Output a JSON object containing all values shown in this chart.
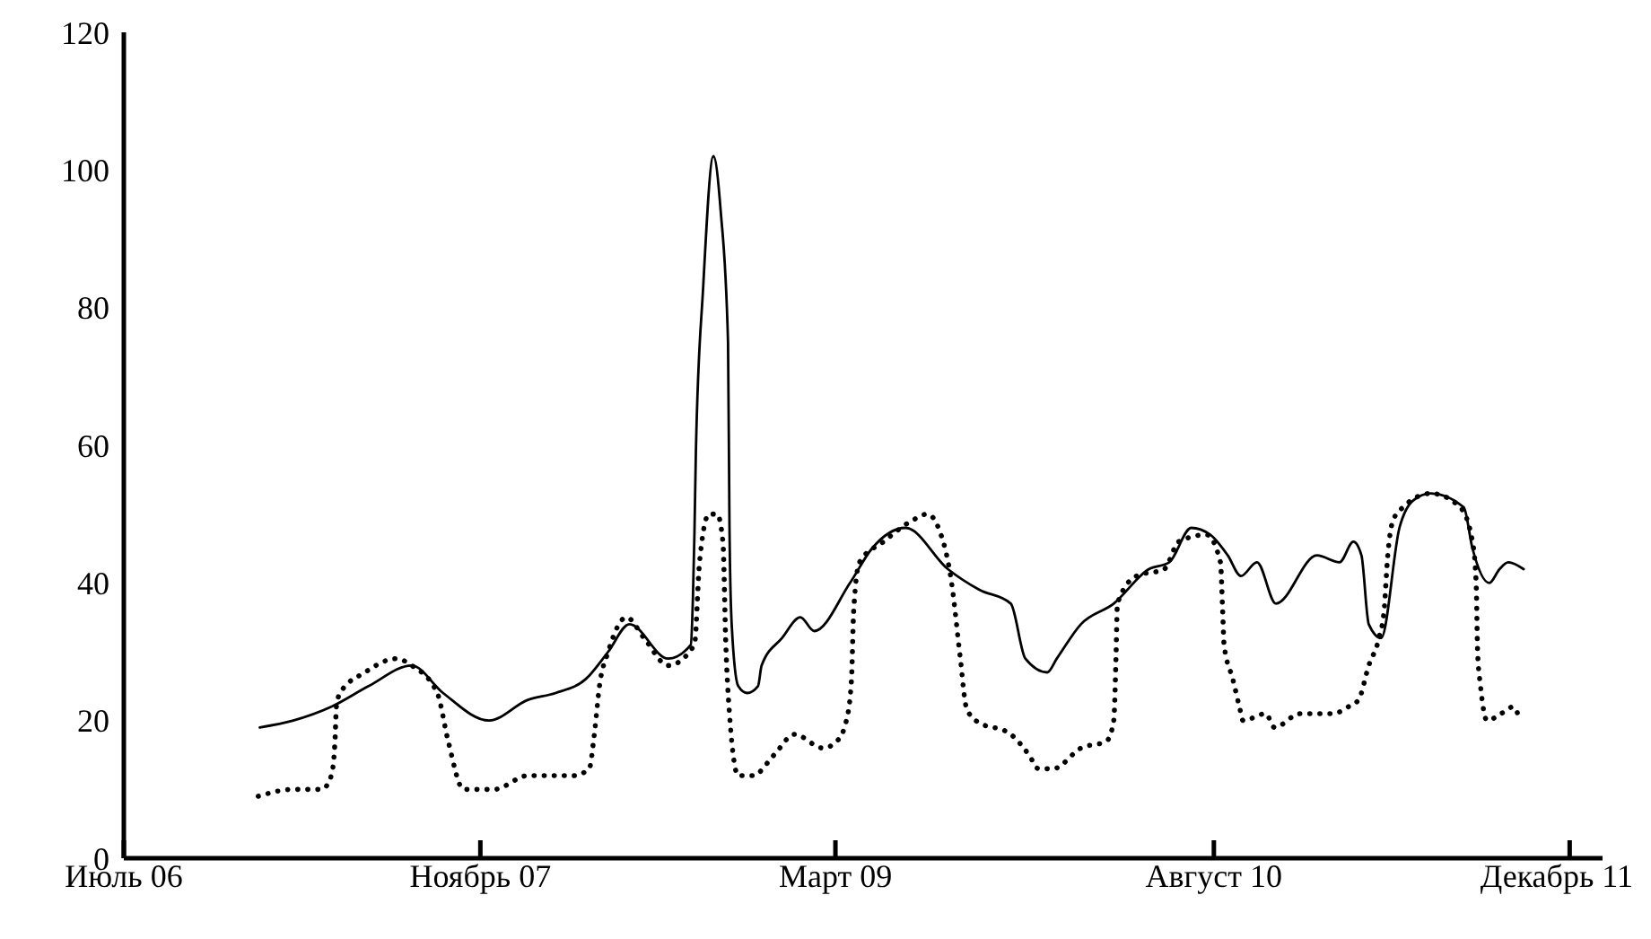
{
  "chart_data": {
    "type": "line",
    "xlim": [
      "2006-07",
      "2012-01-15"
    ],
    "ylim": [
      0,
      120
    ],
    "xticks": [
      {
        "value": "2006-07",
        "label": "Июль 06"
      },
      {
        "value": "2007-11",
        "label": "Ноябрь 07"
      },
      {
        "value": "2009-03",
        "label": "Март 09"
      },
      {
        "value": "2010-08",
        "label": "Август 10"
      },
      {
        "value": "2011-12",
        "label": "Декабрь 11"
      }
    ],
    "yticks": [
      0,
      20,
      40,
      60,
      80,
      100,
      120
    ],
    "grid": false,
    "legend": false,
    "marker": "none",
    "series": [
      {
        "color": "#000000",
        "line_style": "solid",
        "x": [
          "2007-01-03",
          "2007-02-18",
          "2007-04-11",
          "2007-06-01",
          "2007-07-30",
          "2007-09-11",
          "2007-11-13",
          "2008-01-05",
          "2008-02-12",
          "2008-03-24",
          "2008-04-24",
          "2008-05-23",
          "2008-07-15",
          "2008-08-15",
          "2008-08-18",
          "2008-08-20",
          "2008-08-22",
          "2008-09-01",
          "2008-09-15",
          "2008-09-25",
          "2008-10-05",
          "2008-10-07",
          "2008-10-10",
          "2008-10-19",
          "2008-10-31",
          "2008-11-15",
          "2008-11-20",
          "2008-12-18",
          "2009-01-12",
          "2009-01-31",
          "2009-03-21",
          "2009-04-20",
          "2009-06-05",
          "2009-08-02",
          "2009-09-14",
          "2009-10-27",
          "2009-11-16",
          "2009-12-16",
          "2009-12-29",
          "2010-01-31",
          "2010-03-17",
          "2010-05-04",
          "2010-06-01",
          "2010-07-01",
          "2010-07-27",
          "2010-08-20",
          "2010-09-07",
          "2010-09-29",
          "2010-10-25",
          "2010-12-20",
          "2011-01-20",
          "2011-02-08",
          "2011-02-19",
          "2011-03-01",
          "2011-03-18",
          "2011-04-12",
          "2011-05-01",
          "2011-05-25",
          "2011-07-09",
          "2011-07-21",
          "2011-08-13",
          "2011-08-27",
          "2011-09-08",
          "2011-09-29"
        ],
        "values": [
          19,
          20,
          22,
          25,
          28,
          24,
          20,
          23,
          24,
          26,
          30,
          34,
          29,
          31,
          38,
          47,
          59,
          83,
          102,
          94,
          75,
          48,
          34,
          25,
          24,
          25,
          28,
          32,
          35,
          33,
          40,
          45,
          48,
          42,
          39,
          37,
          29,
          27,
          29,
          34,
          37,
          42,
          43,
          48,
          47,
          44,
          41,
          43,
          37,
          44,
          43,
          46,
          44,
          34,
          32,
          48,
          52,
          53,
          51,
          45,
          40,
          42,
          43,
          42
        ]
      },
      {
        "color": "#000000",
        "line_style": "dotted",
        "x": [
          "2007-01-01",
          "2007-02-18",
          "2007-03-29",
          "2007-04-11",
          "2007-04-16",
          "2007-04-18",
          "2007-04-23",
          "2007-05-27",
          "2007-07-09",
          "2007-07-30",
          "2007-09-03",
          "2007-09-18",
          "2007-10-09",
          "2007-11-20",
          "2008-01-05",
          "2008-03-07",
          "2008-03-29",
          "2008-04-05",
          "2008-04-12",
          "2008-04-24",
          "2008-05-19",
          "2008-06-12",
          "2008-07-15",
          "2008-08-20",
          "2008-08-27",
          "2008-09-09",
          "2008-09-20",
          "2008-09-28",
          "2008-10-02",
          "2008-10-07",
          "2008-10-19",
          "2008-11-08",
          "2008-12-07",
          "2009-01-04",
          "2009-02-12",
          "2009-03-03",
          "2009-03-16",
          "2009-03-23",
          "2009-03-26",
          "2009-04-03",
          "2009-05-06",
          "2009-06-13",
          "2009-07-05",
          "2009-07-20",
          "2009-08-07",
          "2009-08-19",
          "2009-08-27",
          "2009-09-09",
          "2009-10-27",
          "2009-11-21",
          "2009-12-04",
          "2009-12-24",
          "2010-01-31",
          "2010-03-07",
          "2010-03-17",
          "2010-03-20",
          "2010-03-22",
          "2010-04-17",
          "2010-05-25",
          "2010-06-14",
          "2010-07-22",
          "2010-08-10",
          "2010-08-13",
          "2010-08-15",
          "2010-08-27",
          "2010-09-05",
          "2010-09-10",
          "2010-10-11",
          "2010-10-23",
          "2010-11-27",
          "2011-01-11",
          "2011-02-01",
          "2011-02-15",
          "2011-03-01",
          "2011-03-15",
          "2011-03-22",
          "2011-03-27",
          "2011-04-03",
          "2011-04-17",
          "2011-05-25",
          "2011-07-04",
          "2011-07-21",
          "2011-07-26",
          "2011-07-28",
          "2011-08-01",
          "2011-08-10",
          "2011-08-29",
          "2011-09-15",
          "2011-09-24"
        ],
        "values": [
          9,
          10,
          10,
          12,
          17,
          22,
          24,
          27,
          29,
          28,
          24,
          17,
          10,
          10,
          12,
          12,
          13,
          18,
          25,
          30,
          35,
          32,
          28,
          31,
          43,
          50,
          50,
          46,
          31,
          21,
          12,
          12,
          15,
          18,
          16,
          17,
          20,
          26,
          36,
          43,
          46,
          49,
          50,
          48,
          40,
          29,
          22,
          20,
          18,
          15,
          13,
          13,
          16,
          17,
          20,
          29,
          37,
          41,
          42,
          46,
          47,
          43,
          36,
          31,
          26,
          22,
          20,
          21,
          19,
          21,
          21,
          22,
          23,
          28,
          32,
          36,
          44,
          49,
          51,
          53,
          51,
          46,
          40,
          30,
          25,
          20,
          21,
          22,
          20
        ]
      }
    ]
  }
}
